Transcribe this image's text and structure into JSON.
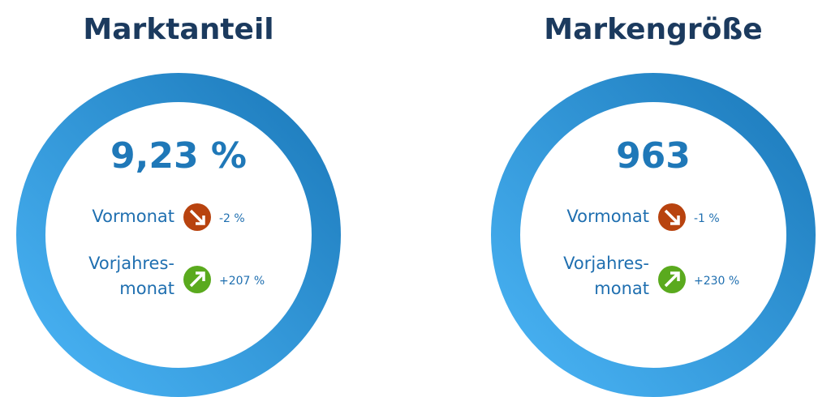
{
  "panels": [
    {
      "title": "Marktanteil",
      "value": "9,23 %",
      "rows": [
        {
          "label": [
            "Vormonat"
          ],
          "change": "-2 %"
        },
        {
          "label": [
            "Vorjahres-",
            "monat"
          ],
          "change": "+207 %"
        }
      ]
    },
    {
      "title": "Markengröße",
      "value": "963",
      "rows": [
        {
          "label": [
            "Vormonat"
          ],
          "change": "-1 %"
        },
        {
          "label": [
            "Vorjahres-",
            "monat"
          ],
          "change": "+230 %"
        }
      ]
    }
  ]
}
